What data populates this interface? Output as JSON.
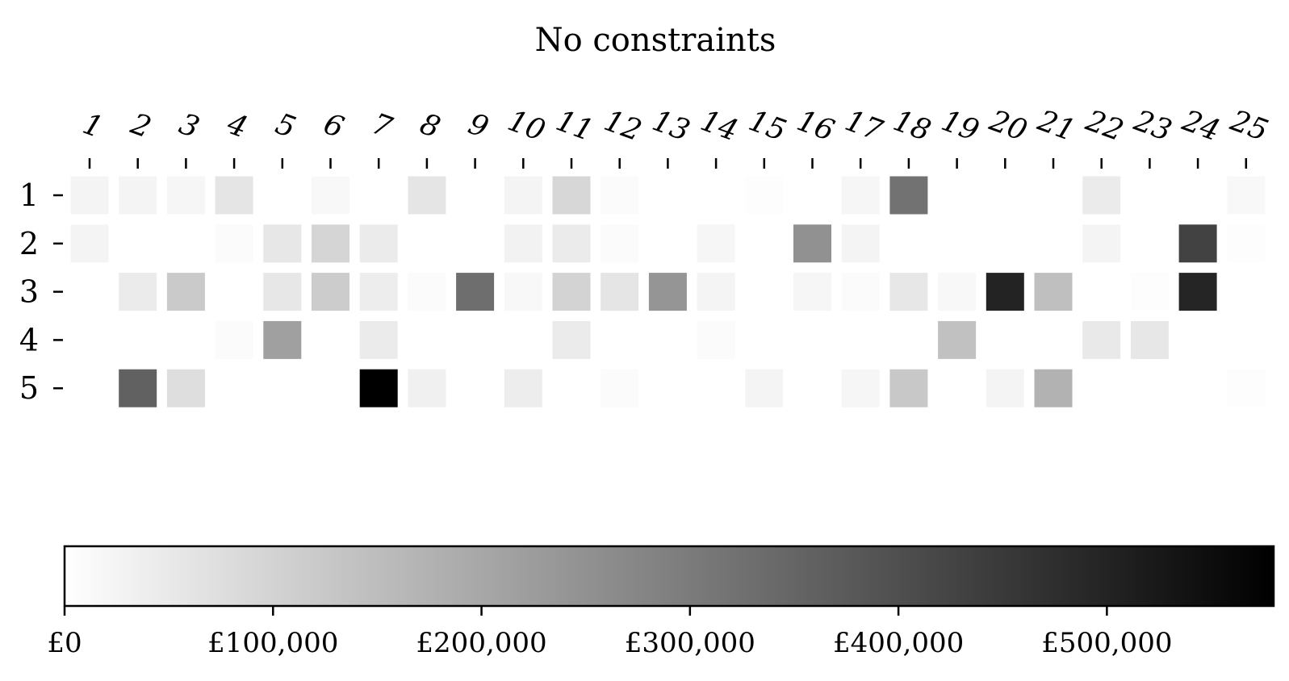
{
  "chart_data": {
    "type": "heatmap",
    "title": "No constraints",
    "rows": [
      "1",
      "2",
      "3",
      "4",
      "5"
    ],
    "columns": [
      "1",
      "2",
      "3",
      "4",
      "5",
      "6",
      "7",
      "8",
      "9",
      "10",
      "11",
      "12",
      "13",
      "14",
      "15",
      "16",
      "17",
      "18",
      "19",
      "20",
      "21",
      "22",
      "23",
      "24",
      "25"
    ],
    "values": [
      [
        25000,
        25000,
        20000,
        60000,
        0,
        15000,
        0,
        60000,
        0,
        25000,
        90000,
        10000,
        0,
        0,
        5000,
        0,
        20000,
        320000,
        0,
        0,
        0,
        45000,
        0,
        0,
        15000
      ],
      [
        25000,
        0,
        0,
        10000,
        55000,
        95000,
        45000,
        0,
        0,
        30000,
        45000,
        10000,
        0,
        20000,
        0,
        250000,
        25000,
        0,
        0,
        0,
        0,
        25000,
        0,
        430000,
        5000
      ],
      [
        0,
        45000,
        120000,
        0,
        55000,
        115000,
        40000,
        10000,
        330000,
        15000,
        100000,
        60000,
        240000,
        25000,
        0,
        20000,
        10000,
        55000,
        15000,
        500000,
        145000,
        0,
        5000,
        495000,
        0
      ],
      [
        0,
        0,
        0,
        10000,
        215000,
        0,
        45000,
        0,
        0,
        0,
        45000,
        0,
        0,
        10000,
        0,
        0,
        0,
        0,
        140000,
        0,
        0,
        50000,
        55000,
        0,
        0
      ],
      [
        0,
        360000,
        75000,
        0,
        0,
        0,
        580000,
        35000,
        0,
        40000,
        0,
        10000,
        0,
        0,
        25000,
        0,
        20000,
        125000,
        0,
        25000,
        175000,
        0,
        0,
        0,
        5000
      ]
    ],
    "colormap": {
      "low": "#ffffff",
      "high": "#000000"
    },
    "range": [
      0,
      580000
    ],
    "colorbar": {
      "ticks": [
        0,
        100000,
        200000,
        300000,
        400000,
        500000
      ],
      "tick_labels": [
        "£0",
        "£100,000",
        "£200,000",
        "£300,000",
        "£400,000",
        "£500,000"
      ]
    }
  }
}
